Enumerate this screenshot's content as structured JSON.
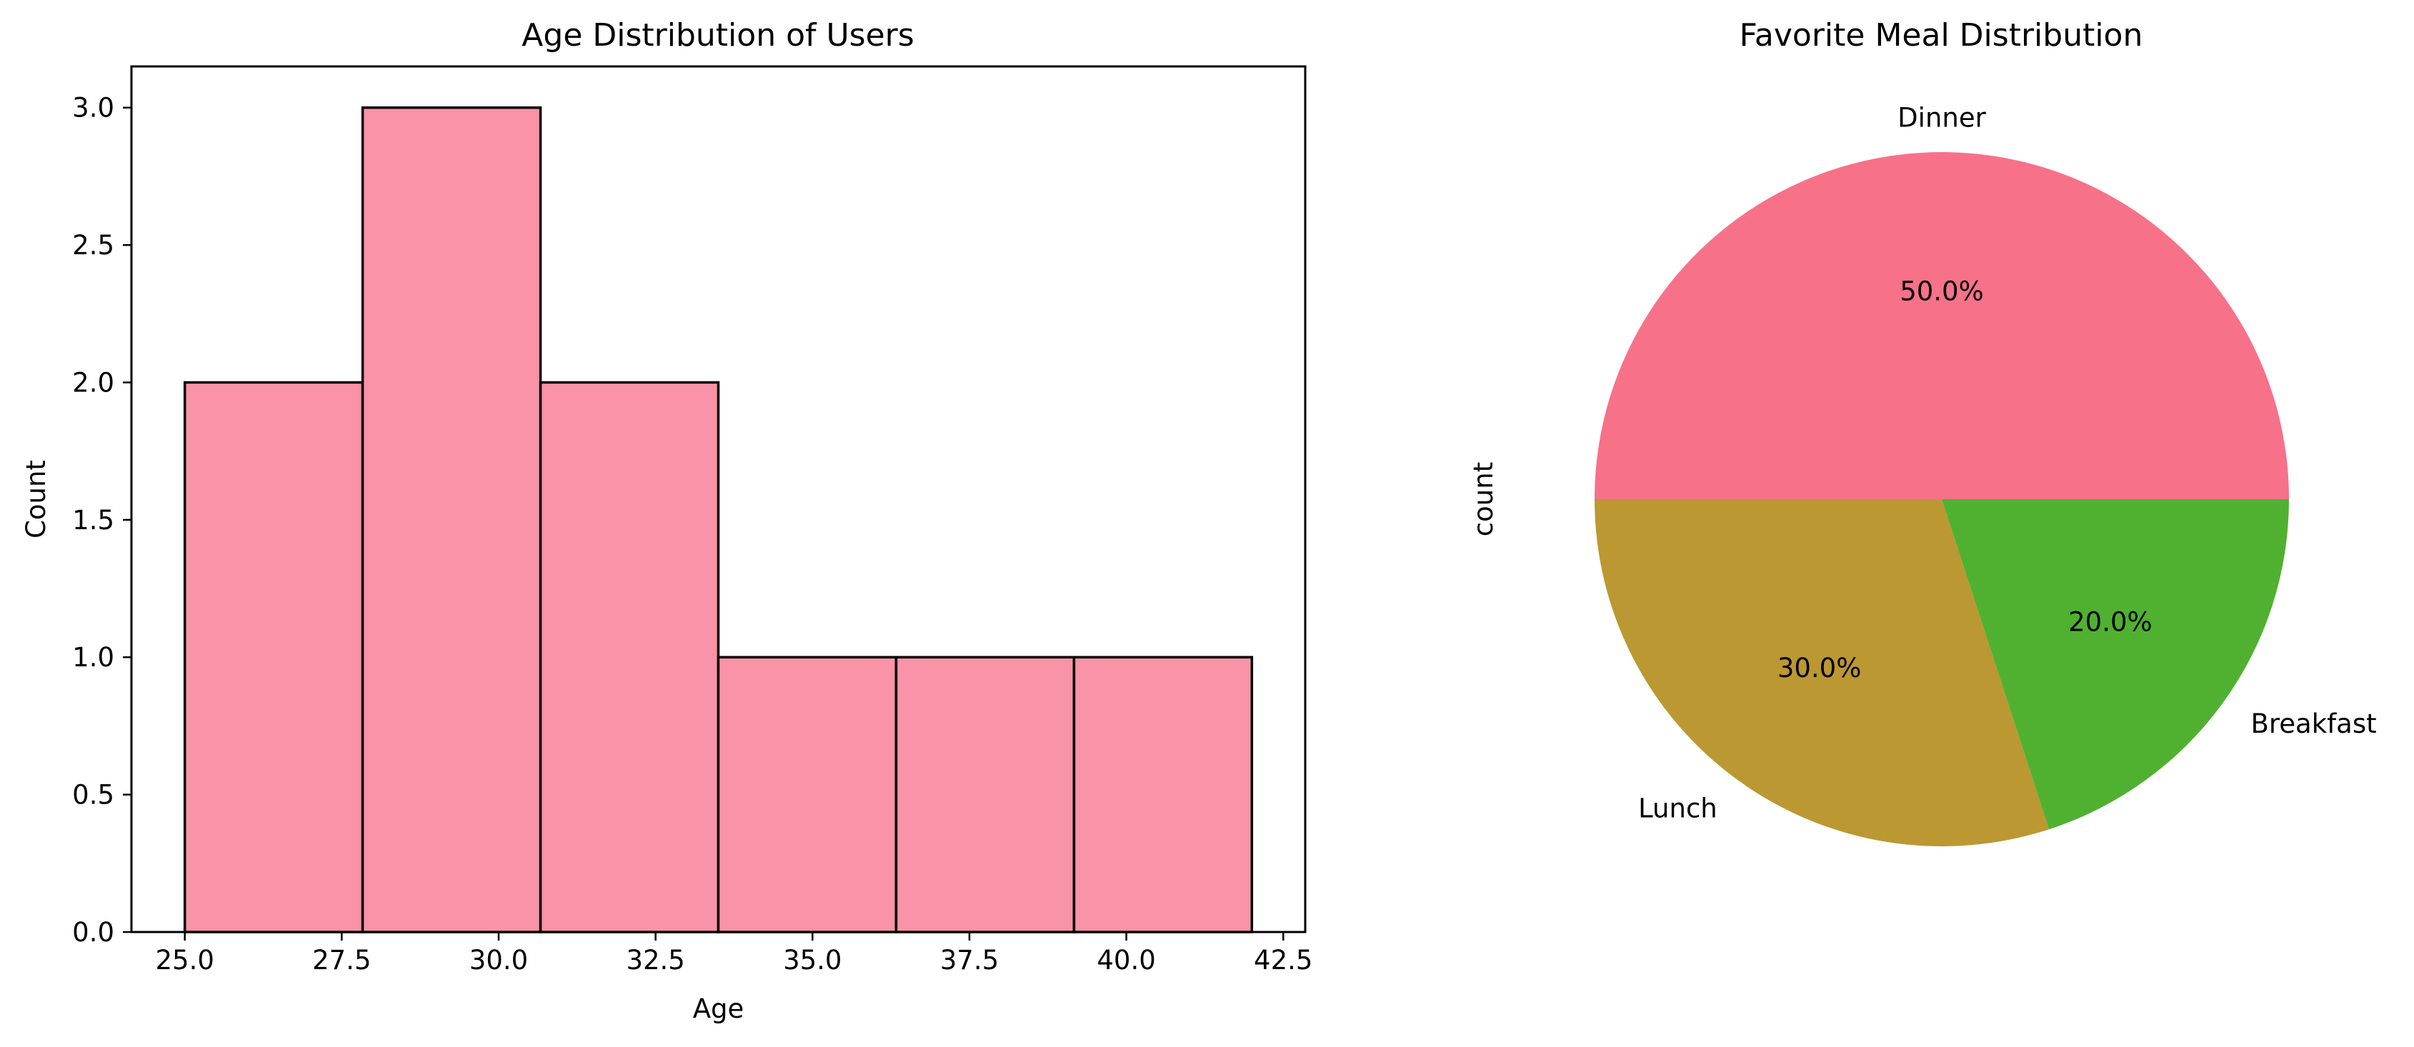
{
  "chart_data": [
    {
      "type": "bar",
      "subtype": "histogram",
      "title": "Age Distribution of Users",
      "xlabel": "Age",
      "ylabel": "Count",
      "bin_edges": [
        25.0,
        27.833,
        30.667,
        33.5,
        36.333,
        39.167,
        42.0
      ],
      "values": [
        2,
        3,
        2,
        1,
        1,
        1
      ],
      "xlim": [
        24.15,
        42.85
      ],
      "ylim": [
        0,
        3.15
      ],
      "xticks": [
        25.0,
        27.5,
        30.0,
        32.5,
        35.0,
        37.5,
        40.0,
        42.5
      ],
      "xtick_labels": [
        "25.0",
        "27.5",
        "30.0",
        "32.5",
        "35.0",
        "37.5",
        "40.0",
        "42.5"
      ],
      "yticks": [
        0.0,
        0.5,
        1.0,
        1.5,
        2.0,
        2.5,
        3.0
      ],
      "ytick_labels": [
        "0.0",
        "0.5",
        "1.0",
        "1.5",
        "2.0",
        "2.5",
        "3.0"
      ],
      "grid": false,
      "bar_color": "#f993a7",
      "edge_color": "#000000"
    },
    {
      "type": "pie",
      "title": "Favorite Meal Distribution",
      "ylabel": "count",
      "categories": [
        "Dinner",
        "Lunch",
        "Breakfast"
      ],
      "values": [
        50.0,
        30.0,
        20.0
      ],
      "pct_labels": [
        "50.0%",
        "30.0%",
        "20.0%"
      ],
      "colors": [
        "#f77189",
        "#bb9832",
        "#50b131"
      ],
      "start_angle": 0,
      "direction": "counterclockwise"
    }
  ]
}
